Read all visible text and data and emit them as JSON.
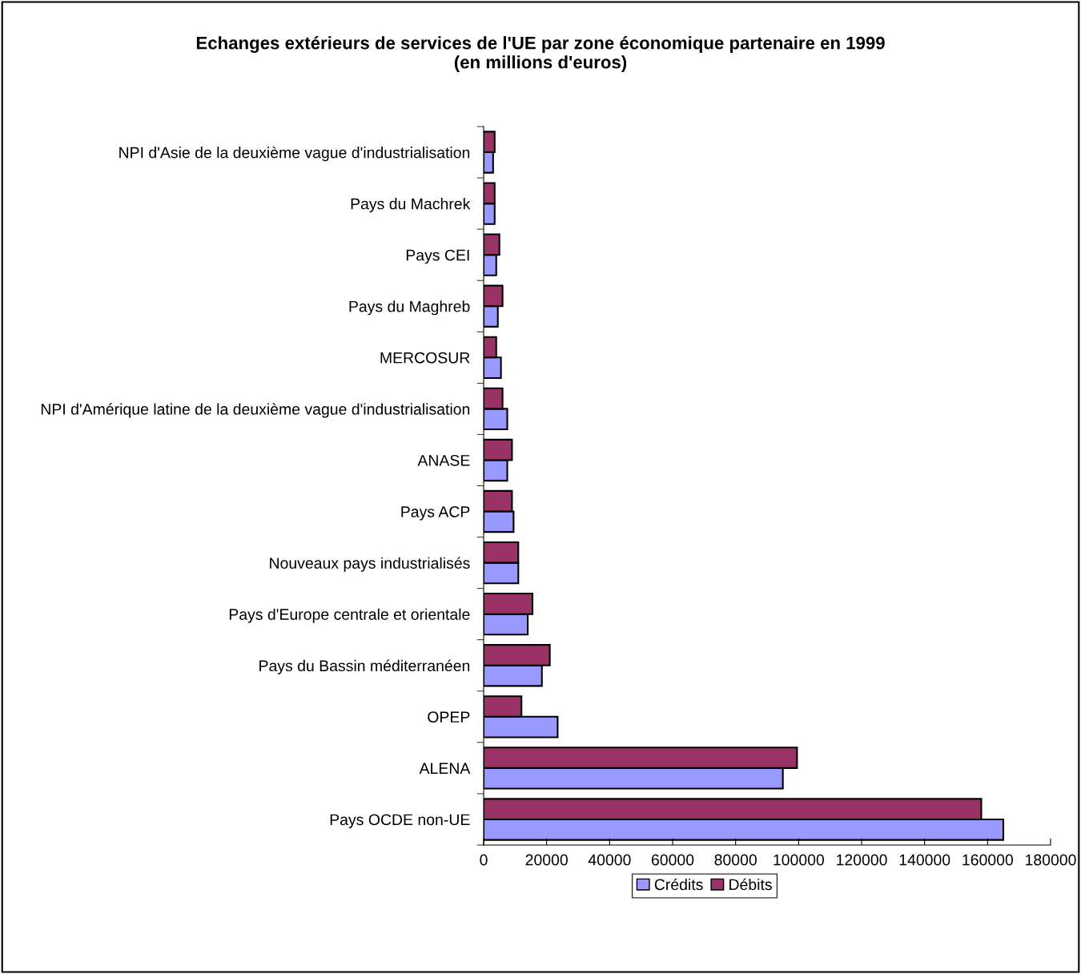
{
  "chart_data": {
    "type": "bar",
    "orientation": "horizontal",
    "title": "Echanges extérieurs de services de l'UE par zone économique partenaire en 1999\n(en millions d'euros)",
    "categories": [
      "NPI d'Asie de la deuxième vague d'industrialisation",
      "Pays du Machrek",
      "Pays CEI",
      "Pays du Maghreb",
      "MERCOSUR",
      "NPI d'Amérique latine de la deuxième vague d'industrialisation",
      "ANASE",
      "Pays ACP",
      "Nouveaux pays industrialisés",
      "Pays d'Europe centrale et orientale",
      "Pays du Bassin méditerranéen",
      "OPEP",
      "ALENA",
      "Pays OCDE non-UE"
    ],
    "series": [
      {
        "name": "Crédits",
        "color": "#9999ff",
        "values": [
          3000,
          3500,
          4000,
          4500,
          5500,
          7500,
          7500,
          9500,
          11000,
          14000,
          18500,
          23500,
          95000,
          165000
        ]
      },
      {
        "name": "Débits",
        "color": "#993366",
        "values": [
          3500,
          3500,
          5000,
          6000,
          4000,
          6000,
          9000,
          9000,
          11000,
          15500,
          21000,
          12000,
          99500,
          158000
        ]
      }
    ],
    "xlim": [
      0,
      180000
    ],
    "xticks": [
      0,
      20000,
      40000,
      60000,
      80000,
      100000,
      120000,
      140000,
      160000,
      180000
    ],
    "grid": false,
    "legend": "bottom"
  }
}
